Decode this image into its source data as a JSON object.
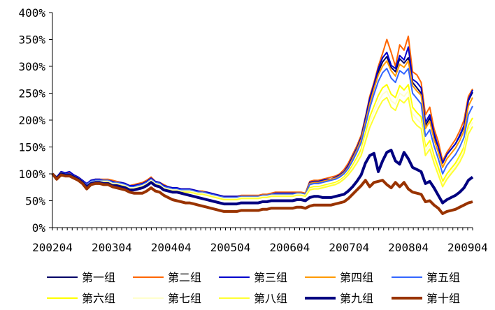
{
  "chart_data": {
    "type": "line",
    "title": "",
    "xlabel": "",
    "ylabel": "",
    "ylim": [
      0,
      400
    ],
    "y_ticks": [
      "0%",
      "50%",
      "100%",
      "150%",
      "200%",
      "250%",
      "300%",
      "350%",
      "400%"
    ],
    "x_tick_labels": [
      "200204",
      "200304",
      "200404",
      "200504",
      "200604",
      "200704",
      "200804",
      "200904"
    ],
    "x_tick_months": [
      0,
      12,
      24,
      36,
      48,
      60,
      72,
      84
    ],
    "months_total": 85,
    "grid": false,
    "legend_position": "bottom",
    "series": [
      {
        "name": "第一组",
        "color": "#000066",
        "width": 2,
        "values": [
          100,
          92,
          102,
          100,
          100,
          96,
          92,
          86,
          80,
          86,
          88,
          88,
          88,
          88,
          84,
          84,
          82,
          80,
          76,
          76,
          78,
          80,
          84,
          90,
          84,
          82,
          76,
          74,
          72,
          72,
          70,
          70,
          70,
          68,
          66,
          66,
          64,
          62,
          60,
          58,
          56,
          56,
          56,
          56,
          58,
          58,
          58,
          58,
          58,
          60,
          60,
          62,
          62,
          62,
          62,
          62,
          62,
          64,
          64,
          62,
          82,
          84,
          84,
          86,
          88,
          90,
          92,
          96,
          102,
          112,
          128,
          144,
          164,
          200,
          234,
          262,
          290,
          308,
          318,
          298,
          290,
          314,
          306,
          316,
          270,
          260,
          250,
          190,
          204,
          170,
          150,
          120,
          136,
          146,
          156,
          170,
          188,
          236,
          252
        ]
      },
      {
        "name": "第二组",
        "color": "#ff6600",
        "width": 2,
        "values": [
          100,
          92,
          104,
          100,
          102,
          98,
          94,
          88,
          80,
          88,
          90,
          90,
          90,
          90,
          88,
          86,
          84,
          82,
          78,
          80,
          82,
          84,
          88,
          94,
          86,
          84,
          80,
          76,
          74,
          74,
          72,
          72,
          72,
          70,
          68,
          68,
          66,
          64,
          62,
          60,
          58,
          58,
          58,
          58,
          60,
          60,
          60,
          60,
          60,
          62,
          62,
          64,
          66,
          66,
          66,
          66,
          66,
          66,
          66,
          64,
          86,
          88,
          88,
          90,
          92,
          94,
          96,
          100,
          108,
          120,
          136,
          152,
          172,
          206,
          244,
          270,
          300,
          324,
          350,
          326,
          300,
          340,
          330,
          356,
          290,
          284,
          270,
          210,
          224,
          184,
          160,
          124,
          140,
          152,
          164,
          180,
          200,
          244,
          258
        ]
      },
      {
        "name": "第三组",
        "color": "#0000cc",
        "width": 2,
        "values": [
          100,
          94,
          104,
          102,
          104,
          98,
          94,
          88,
          82,
          88,
          90,
          90,
          88,
          88,
          86,
          84,
          84,
          82,
          78,
          78,
          80,
          82,
          86,
          92,
          86,
          84,
          78,
          76,
          74,
          74,
          72,
          72,
          72,
          70,
          68,
          66,
          66,
          64,
          62,
          60,
          58,
          58,
          58,
          58,
          58,
          58,
          58,
          58,
          58,
          60,
          60,
          62,
          64,
          64,
          64,
          64,
          64,
          64,
          64,
          62,
          84,
          86,
          86,
          88,
          90,
          90,
          94,
          98,
          104,
          116,
          132,
          148,
          168,
          204,
          240,
          266,
          296,
          316,
          326,
          302,
          296,
          320,
          312,
          336,
          276,
          270,
          260,
          196,
          210,
          176,
          150,
          120,
          136,
          146,
          156,
          172,
          190,
          238,
          256
        ]
      },
      {
        "name": "第四组",
        "color": "#ff9900",
        "width": 2,
        "values": [
          100,
          92,
          102,
          100,
          100,
          96,
          92,
          86,
          80,
          86,
          88,
          88,
          88,
          88,
          84,
          84,
          82,
          80,
          76,
          76,
          78,
          80,
          84,
          90,
          84,
          82,
          76,
          74,
          72,
          72,
          70,
          70,
          70,
          68,
          66,
          66,
          64,
          62,
          60,
          58,
          56,
          56,
          56,
          56,
          58,
          58,
          58,
          58,
          58,
          60,
          60,
          62,
          62,
          62,
          62,
          62,
          62,
          64,
          64,
          62,
          82,
          84,
          84,
          86,
          88,
          90,
          92,
          96,
          102,
          112,
          128,
          144,
          164,
          196,
          230,
          258,
          284,
          300,
          310,
          292,
          282,
          304,
          298,
          310,
          264,
          254,
          246,
          184,
          198,
          164,
          140,
          112,
          128,
          138,
          148,
          162,
          180,
          226,
          242
        ]
      },
      {
        "name": "第五组",
        "color": "#3366ff",
        "width": 2,
        "values": [
          100,
          92,
          102,
          100,
          100,
          96,
          92,
          86,
          80,
          86,
          88,
          88,
          88,
          88,
          84,
          84,
          82,
          80,
          76,
          76,
          78,
          80,
          84,
          90,
          84,
          82,
          76,
          74,
          72,
          72,
          70,
          70,
          70,
          68,
          66,
          66,
          64,
          62,
          60,
          58,
          56,
          56,
          56,
          56,
          58,
          58,
          58,
          58,
          58,
          60,
          60,
          62,
          62,
          62,
          62,
          62,
          62,
          64,
          64,
          62,
          80,
          82,
          82,
          84,
          86,
          88,
          90,
          94,
          100,
          110,
          124,
          140,
          158,
          190,
          222,
          248,
          272,
          288,
          296,
          278,
          270,
          292,
          286,
          296,
          250,
          240,
          230,
          170,
          182,
          152,
          128,
          100,
          116,
          126,
          136,
          150,
          168,
          210,
          226
        ]
      },
      {
        "name": "第六组",
        "color": "#ffff00",
        "width": 2,
        "values": [
          100,
          92,
          102,
          98,
          98,
          94,
          90,
          84,
          78,
          84,
          86,
          86,
          86,
          86,
          82,
          82,
          80,
          78,
          74,
          74,
          76,
          78,
          82,
          88,
          82,
          80,
          74,
          72,
          70,
          70,
          68,
          68,
          68,
          66,
          64,
          64,
          62,
          60,
          58,
          56,
          54,
          54,
          54,
          54,
          56,
          56,
          56,
          56,
          56,
          58,
          58,
          60,
          60,
          60,
          60,
          60,
          60,
          62,
          62,
          60,
          74,
          76,
          76,
          78,
          80,
          82,
          84,
          88,
          94,
          104,
          116,
          130,
          146,
          176,
          206,
          226,
          246,
          260,
          266,
          248,
          242,
          264,
          256,
          266,
          224,
          214,
          206,
          150,
          162,
          134,
          112,
          86,
          100,
          110,
          120,
          134,
          150,
          190,
          204
        ]
      },
      {
        "name": "第七组",
        "color": "#ffffcc",
        "width": 2,
        "values": [
          100,
          92,
          100,
          98,
          98,
          94,
          90,
          84,
          78,
          84,
          86,
          86,
          86,
          86,
          82,
          82,
          80,
          78,
          74,
          74,
          76,
          78,
          82,
          88,
          82,
          80,
          74,
          72,
          70,
          70,
          68,
          68,
          68,
          66,
          64,
          64,
          62,
          60,
          58,
          56,
          54,
          54,
          54,
          54,
          56,
          56,
          56,
          56,
          56,
          58,
          58,
          60,
          60,
          60,
          60,
          60,
          60,
          62,
          62,
          60,
          72,
          74,
          74,
          76,
          78,
          80,
          82,
          86,
          92,
          100,
          112,
          126,
          140,
          168,
          196,
          216,
          234,
          248,
          254,
          236,
          230,
          250,
          244,
          254,
          212,
          202,
          194,
          142,
          154,
          126,
          104,
          80,
          94,
          104,
          114,
          128,
          144,
          182,
          196
        ]
      },
      {
        "name": "第八组",
        "color": "#ffff33",
        "width": 2,
        "values": [
          100,
          92,
          100,
          98,
          98,
          94,
          90,
          84,
          76,
          82,
          84,
          84,
          84,
          84,
          80,
          80,
          78,
          76,
          72,
          72,
          74,
          76,
          80,
          86,
          80,
          78,
          72,
          70,
          68,
          68,
          66,
          66,
          66,
          64,
          62,
          62,
          60,
          58,
          56,
          54,
          52,
          52,
          52,
          52,
          54,
          54,
          54,
          54,
          54,
          56,
          56,
          58,
          58,
          58,
          58,
          58,
          58,
          60,
          60,
          58,
          70,
          72,
          72,
          74,
          76,
          78,
          80,
          84,
          90,
          98,
          108,
          120,
          134,
          160,
          186,
          204,
          222,
          236,
          242,
          224,
          218,
          238,
          232,
          242,
          200,
          190,
          184,
          134,
          146,
          120,
          98,
          76,
          90,
          100,
          110,
          122,
          138,
          174,
          188
        ]
      },
      {
        "name": "第九组",
        "color": "#000080",
        "width": 4,
        "values": [
          100,
          92,
          100,
          98,
          98,
          94,
          90,
          84,
          76,
          82,
          84,
          84,
          82,
          82,
          78,
          78,
          76,
          74,
          70,
          70,
          72,
          74,
          78,
          84,
          78,
          76,
          70,
          68,
          66,
          66,
          64,
          62,
          60,
          58,
          56,
          54,
          52,
          50,
          48,
          46,
          44,
          44,
          44,
          44,
          46,
          46,
          46,
          46,
          46,
          48,
          48,
          50,
          50,
          50,
          50,
          50,
          50,
          52,
          52,
          50,
          56,
          58,
          58,
          56,
          56,
          56,
          58,
          60,
          62,
          68,
          76,
          86,
          98,
          120,
          134,
          138,
          104,
          124,
          140,
          144,
          124,
          118,
          140,
          128,
          112,
          108,
          104,
          82,
          86,
          74,
          60,
          46,
          52,
          56,
          60,
          66,
          74,
          88,
          94
        ]
      },
      {
        "name": "第十组",
        "color": "#993300",
        "width": 4,
        "values": [
          100,
          90,
          98,
          96,
          96,
          92,
          88,
          82,
          72,
          80,
          82,
          82,
          80,
          80,
          76,
          74,
          72,
          70,
          66,
          64,
          64,
          64,
          68,
          74,
          68,
          66,
          60,
          56,
          52,
          50,
          48,
          46,
          46,
          44,
          42,
          40,
          38,
          36,
          34,
          32,
          30,
          30,
          30,
          30,
          32,
          32,
          32,
          32,
          32,
          34,
          34,
          36,
          36,
          36,
          36,
          36,
          36,
          38,
          38,
          36,
          40,
          42,
          42,
          42,
          42,
          42,
          44,
          46,
          48,
          54,
          62,
          70,
          78,
          88,
          76,
          84,
          86,
          88,
          80,
          74,
          84,
          76,
          84,
          72,
          66,
          64,
          62,
          48,
          50,
          42,
          36,
          26,
          30,
          32,
          34,
          38,
          42,
          46,
          48
        ]
      }
    ]
  }
}
